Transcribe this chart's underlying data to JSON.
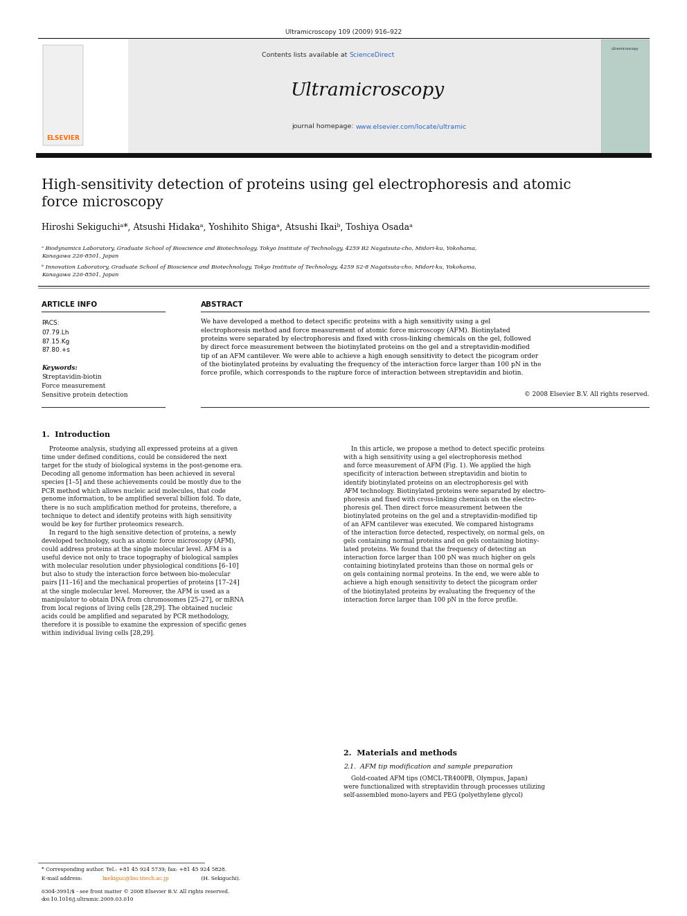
{
  "page_width": 9.92,
  "page_height": 13.23,
  "bg_color": "#ffffff",
  "header_journal_citation": "Ultramicroscopy 109 (2009) 916–922",
  "header_bg": "#e8e8e8",
  "sciencedirect_color": "#3366cc",
  "url_color": "#3366cc",
  "header_journal_name": "Ultramicroscopy",
  "title": "High-sensitivity detection of proteins using gel electrophoresis and atomic\nforce microscopy",
  "authors": "Hiroshi Sekiguchiᵃ*, Atsushi Hidakaᵃ, Yoshihito Shigaᵃ, Atsushi Ikaiᵇ, Toshiya Osadaᵃ",
  "affil_a": "ᵃ Biodynamics Laboratory, Graduate School of Bioscience and Biotechnology, Tokyo Institute of Technology, 4259 B2 Nagatsuta-cho, Midori-ku, Yokohama,\nKanagawa 226-8501, Japan",
  "affil_b": "ᵇ Innovation Laboratory, Graduate School of Bioscience and Biotechnology, Tokyo Institute of Technology, 4259 S2-8 Nagatsuta-cho, Midori-ku, Yokohama,\nKanagawa 226-8501, Japan",
  "article_info_label": "ARTICLE INFO",
  "abstract_label": "ABSTRACT",
  "pacs_label": "PACS:",
  "pacs_codes": "07.79.Lh\n87.15.Kg\n87.80.+s",
  "keywords_label": "Keywords:",
  "keywords": "Streptavidin-biotin\nForce measurement\nSensitive protein detection",
  "abstract_text": "We have developed a method to detect specific proteins with a high sensitivity using a gel\nelectrophoresis method and force measurement of atomic force microscopy (AFM). Biotinylated\nproteins were separated by electrophoresis and fixed with cross-linking chemicals on the gel, followed\nby direct force measurement between the biotinylated proteins on the gel and a streptavidin-modified\ntip of an AFM cantilever. We were able to achieve a high enough sensitivity to detect the picogram order\nof the biotinylated proteins by evaluating the frequency of the interaction force larger than 100 pN in the\nforce profile, which corresponds to the rupture force of interaction between streptavidin and biotin.",
  "abstract_copyright": "© 2008 Elsevier B.V. All rights reserved.",
  "section1_title": "1.  Introduction",
  "section1_left": "    Proteome analysis, studying all expressed proteins at a given\ntime under defined conditions, could be considered the next\ntarget for the study of biological systems in the post-genome era.\nDecoding all genome information has been achieved in several\nspecies [1–5] and these achievements could be mostly due to the\nPCR method which allows nucleic acid molecules, that code\ngenome information, to be amplified several billion fold. To date,\nthere is no such amplification method for proteins, therefore, a\ntechnique to detect and identify proteins with high sensitivity\nwould be key for further proteomics research.\n    In regard to the high sensitive detection of proteins, a newly\ndeveloped technology, such as atomic force microscopy (AFM),\ncould address proteins at the single molecular level. AFM is a\nuseful device not only to trace topography of biological samples\nwith molecular resolution under physiological conditions [6–10]\nbut also to study the interaction force between bio-molecular\npairs [11–16] and the mechanical properties of proteins [17–24]\nat the single molecular level. Moreover, the AFM is used as a\nmanipulator to obtain DNA from chromosomes [25–27], or mRNA\nfrom local regions of living cells [28,29]. The obtained nucleic\nacids could be amplified and separated by PCR methodology,\ntherefore it is possible to examine the expression of specific genes\nwithin individual living cells [28,29].",
  "section1_right": "    In this article, we propose a method to detect specific proteins\nwith a high sensitivity using a gel electrophoresis method\nand force measurement of AFM (Fig. 1). We applied the high\nspecificity of interaction between streptavidin and biotin to\nidentify biotinylated proteins on an electrophoresis gel with\nAFM technology. Biotinylated proteins were separated by electro-\nphoresis and fixed with cross-linking chemicals on the electro-\nphoresis gel. Then direct force measurement between the\nbiotinylated proteins on the gel and a streptavidin-modified tip\nof an AFM cantilever was executed. We compared histograms\nof the interaction force detected, respectively, on normal gels, on\ngels containing normal proteins and on gels containing biotiny-\nlated proteins. We found that the frequency of detecting an\ninteraction force larger than 100 pN was much higher on gels\ncontaining biotinylated proteins than those on normal gels or\non gels containing normal proteins. In the end, we were able to\nachieve a high enough sensitivity to detect the picogram order\nof the biotinylated proteins by evaluating the frequency of the\ninteraction force larger than 100 pN in the force profile.",
  "section2_title": "2.  Materials and methods",
  "section2_sub": "2.1.  AFM tip modification and sample preparation",
  "section2_text": "    Gold-coated AFM tips (OMCL-TR400PB, Olympus, Japan)\nwere functionalized with streptavidin through processes utilizing\nself-assembled mono-layers and PEG (polyethylene glycol)",
  "footnote_corresponding": "* Corresponding author. Tel.: +81 45 924 5739; fax: +81 45 924 5828.",
  "footnote_bottom": "0304-3991/$ - see front matter © 2008 Elsevier B.V. All rights reserved.\ndoi:10.1016/j.ultramic.2009.03.010",
  "email_color": "#cc6600",
  "elsevier_orange": "#ff6600"
}
